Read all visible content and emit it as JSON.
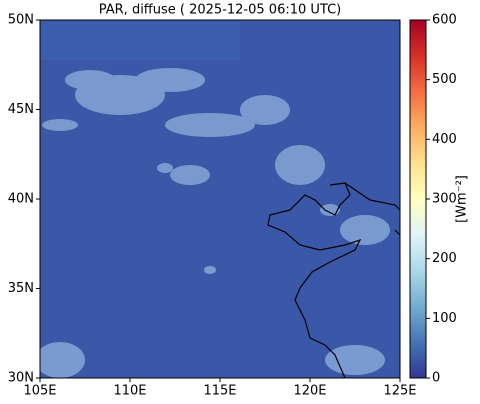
{
  "chart_data": {
    "type": "map",
    "title": "PAR, diffuse ( 2025-12-05 06:10 UTC)",
    "xlim": [
      105,
      125
    ],
    "xticks": [
      {
        "value": 105,
        "label": "105E"
      },
      {
        "value": 110,
        "label": "110E"
      },
      {
        "value": 115,
        "label": "115E"
      },
      {
        "value": 120,
        "label": "120E"
      },
      {
        "value": 125,
        "label": "125E"
      }
    ],
    "ylim": [
      30,
      50
    ],
    "yticks": [
      {
        "value": 30,
        "label": "30N"
      },
      {
        "value": 35,
        "label": "35N"
      },
      {
        "value": 40,
        "label": "40N"
      },
      {
        "value": 45,
        "label": "45N"
      },
      {
        "value": 50,
        "label": "50N"
      }
    ],
    "colorbar": {
      "label": "[Wm⁻²]",
      "clim": [
        0,
        600
      ],
      "ticks": [
        0,
        100,
        200,
        300,
        400,
        500,
        600
      ],
      "colormap": [
        "#313695",
        "#4575b4",
        "#74add1",
        "#abd9e9",
        "#e0f3f8",
        "#ffffbf",
        "#fee090",
        "#fdae61",
        "#f46d43",
        "#d73027",
        "#a50026"
      ]
    }
  }
}
